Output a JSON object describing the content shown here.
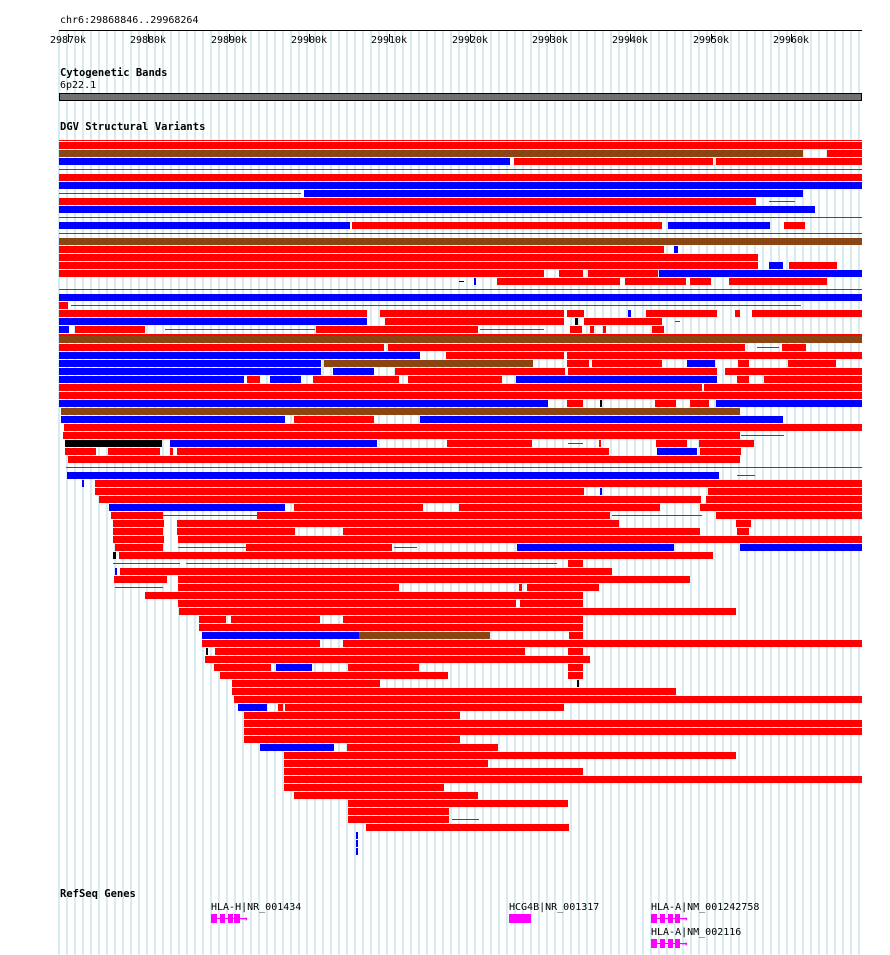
{
  "position_label": "chr6:29868846..29968264",
  "ruler": {
    "ticks": [
      "29870k",
      "29880k",
      "29890k",
      "29900k",
      "29910k",
      "29920k",
      "29930k",
      "29940k",
      "29950k",
      "29960k"
    ]
  },
  "tracks": {
    "cytoband": {
      "title": "Cytogenetic Bands",
      "band_label": "6p22.1"
    },
    "dgv": {
      "title": "DGV Structural Variants"
    },
    "refseq": {
      "title": "RefSeq Genes",
      "genes": [
        {
          "label": "HLA-H|NR_001434"
        },
        {
          "label": "HCG4B|NR_001317"
        },
        {
          "label": "HLA-A|NM_001242758"
        },
        {
          "label": "HLA-A|NM_002116"
        }
      ]
    }
  },
  "colors": {
    "loss": "#ff0000",
    "gain": "#0000ff",
    "gain_loss": "#8b4513",
    "other": "#000000",
    "gene": "#ff00ff",
    "gridline": "#add8e6"
  }
}
